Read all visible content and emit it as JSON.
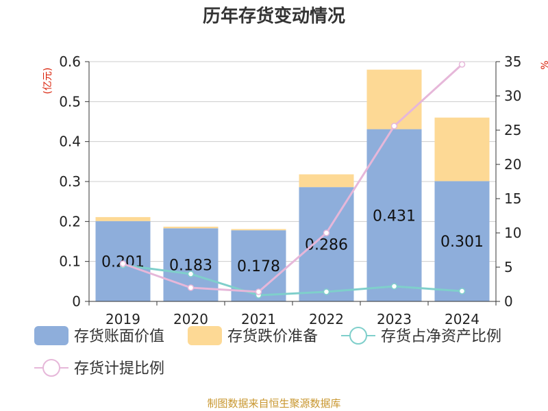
{
  "chart_data": {
    "type": "bar",
    "title": "历年存货变动情况",
    "categories": [
      "2019",
      "2020",
      "2021",
      "2022",
      "2023",
      "2024"
    ],
    "left_axis": {
      "unit": "(亿元)",
      "ylim": [
        0,
        0.6
      ],
      "ticks": [
        "0",
        "0.1",
        "0.2",
        "0.3",
        "0.4",
        "0.5",
        "0.6"
      ]
    },
    "right_axis": {
      "unit": "%",
      "ylim": [
        0,
        35
      ],
      "ticks": [
        "0",
        "5",
        "10",
        "15",
        "20",
        "25",
        "30",
        "35"
      ]
    },
    "series": [
      {
        "name": "存货账面价值",
        "type": "bar",
        "axis": "left",
        "stack": true,
        "color": "#8eaedb",
        "values": [
          0.201,
          0.183,
          0.178,
          0.286,
          0.431,
          0.301
        ],
        "labels": [
          "0.201",
          "0.183",
          "0.178",
          "0.286",
          "0.431",
          "0.301"
        ]
      },
      {
        "name": "存货跌价准备",
        "type": "bar",
        "axis": "left",
        "stack": true,
        "color": "#fdd995",
        "values": [
          0.01,
          0.004,
          0.003,
          0.032,
          0.149,
          0.159
        ]
      },
      {
        "name": "存货占净资产比例",
        "type": "line",
        "axis": "right",
        "color": "#7fcfcb",
        "values": [
          5.3,
          4.0,
          0.9,
          1.4,
          2.2,
          1.5
        ]
      },
      {
        "name": "存货计提比例",
        "type": "line",
        "axis": "right",
        "color": "#e6b7d9",
        "values": [
          5.5,
          2.0,
          1.4,
          10.0,
          25.6,
          34.6
        ]
      }
    ],
    "grid": true,
    "legend": "bottom"
  },
  "source": "制图数据来自恒生聚源数据库"
}
